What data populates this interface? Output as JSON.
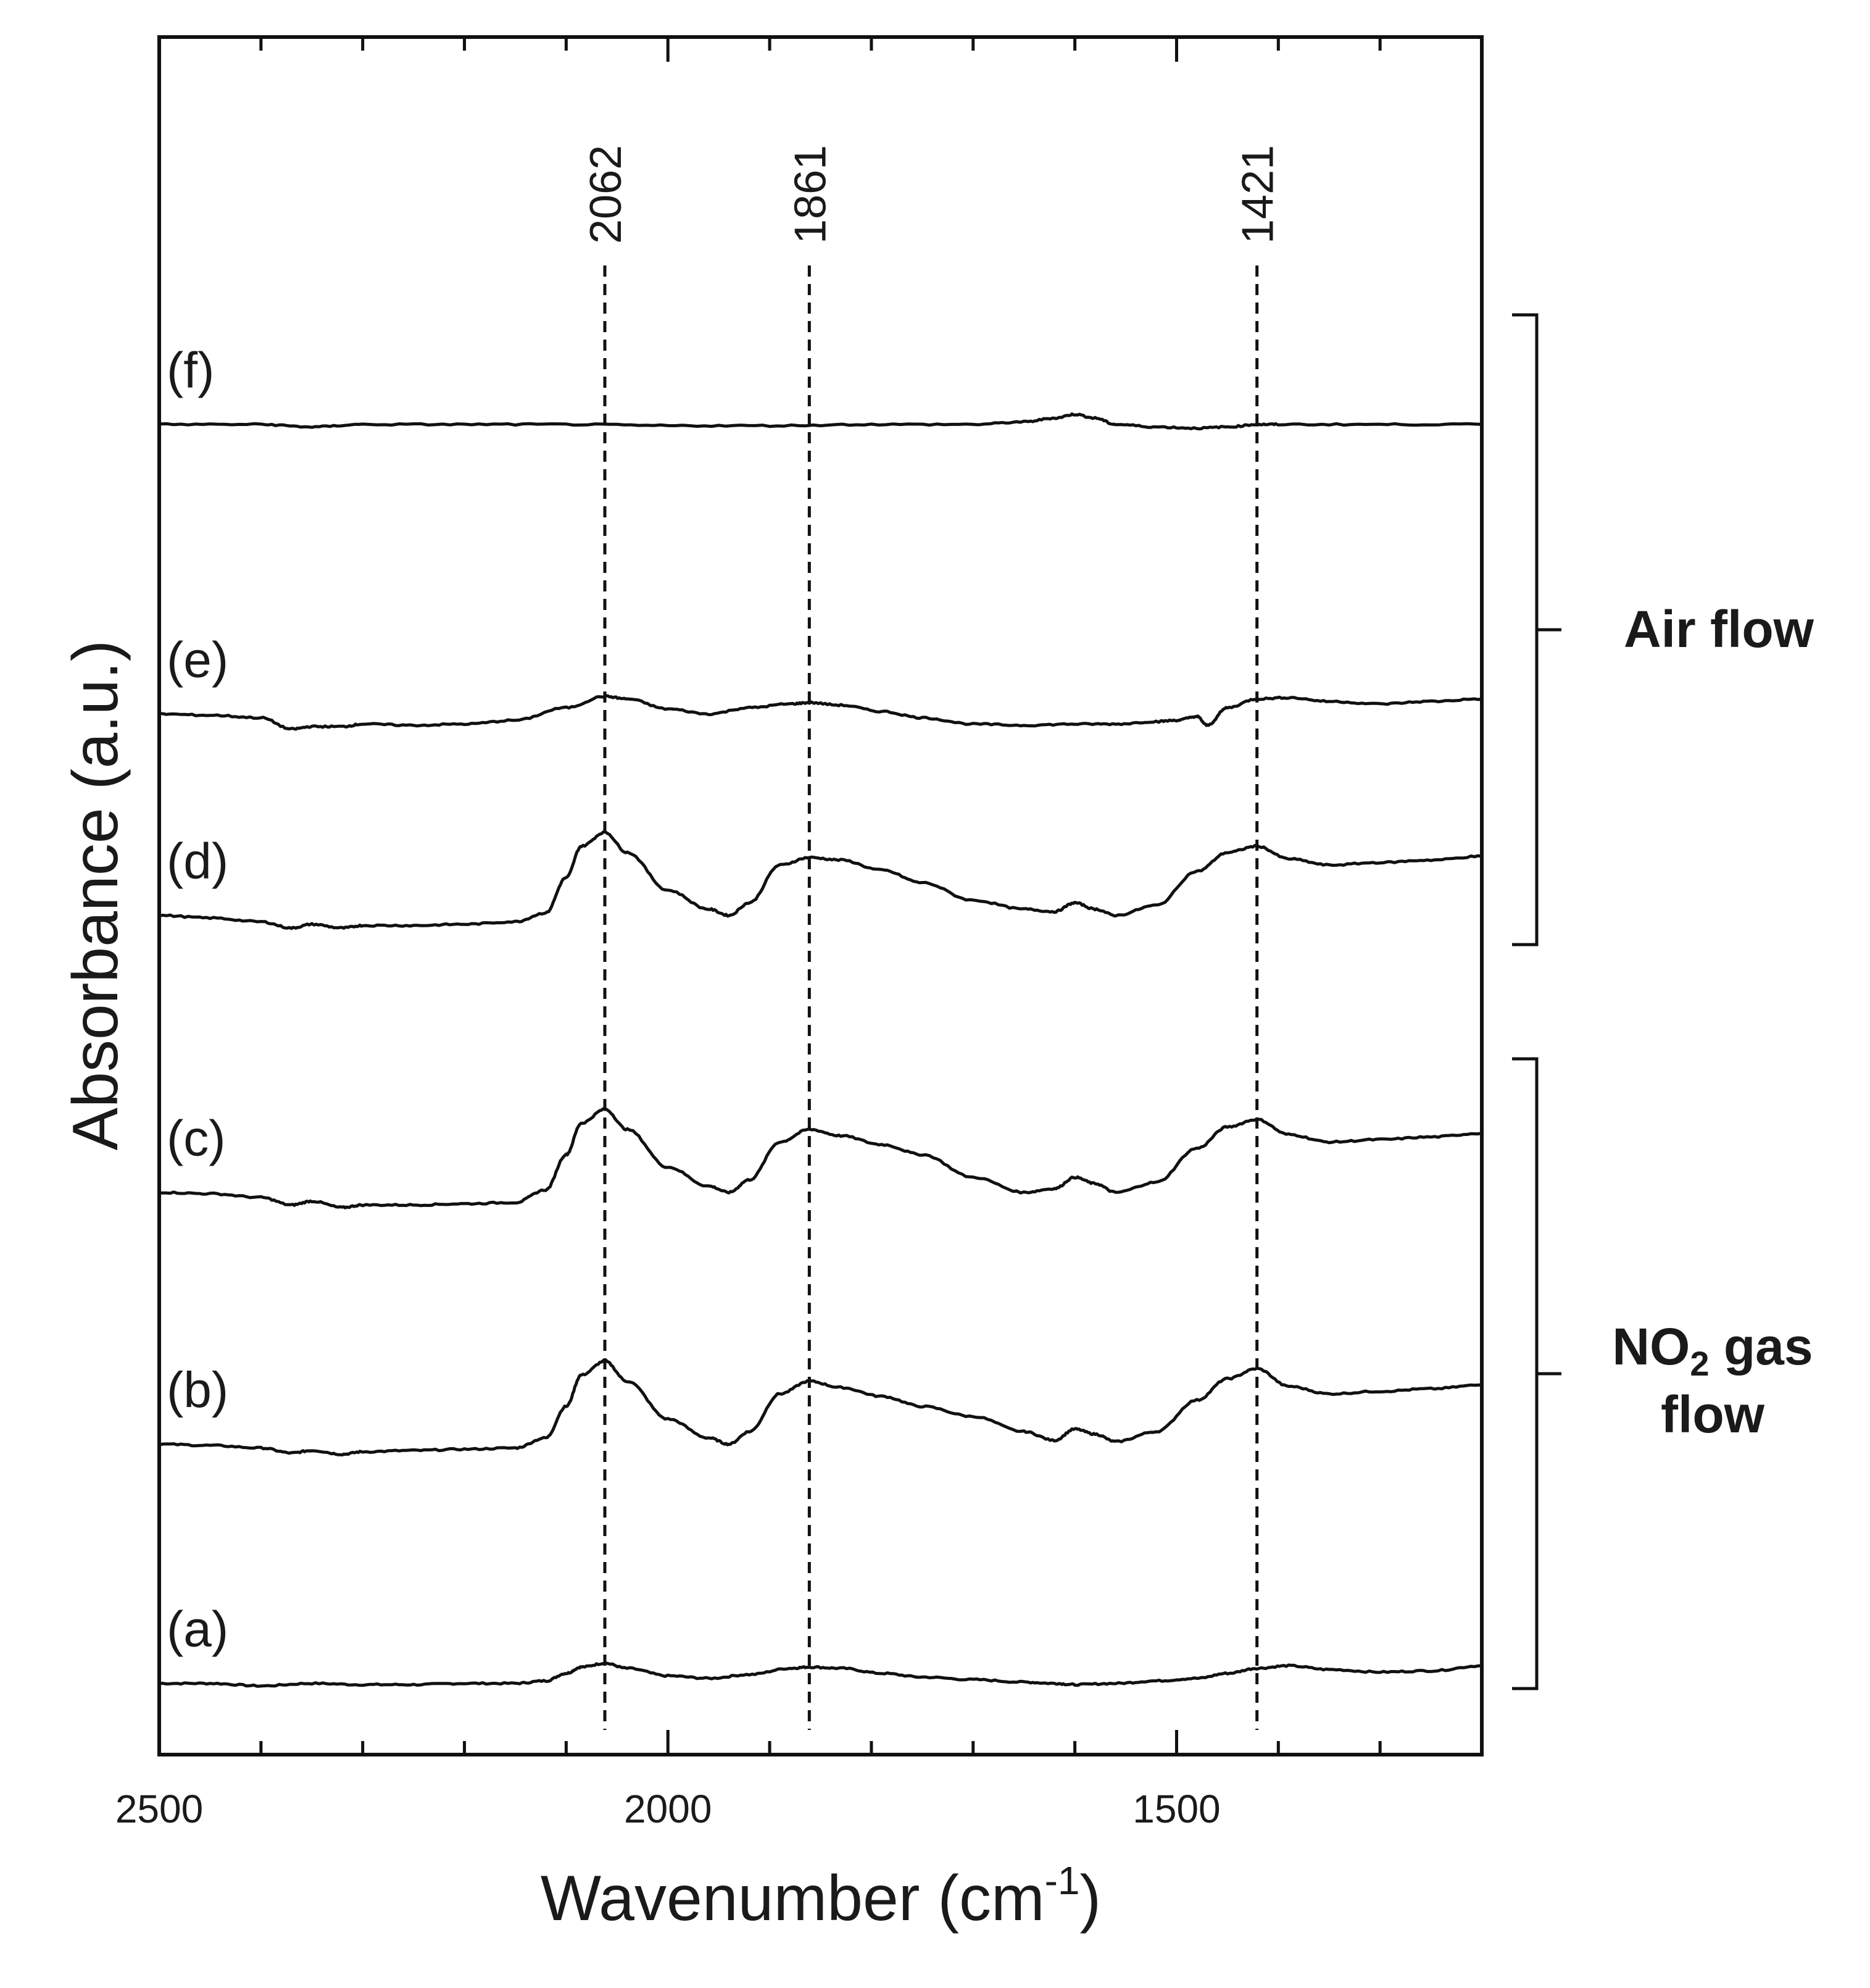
{
  "chart_data": {
    "type": "line",
    "title": "",
    "xlabel": "Wavenumber (cm",
    "xlabel_sup": "-1",
    "xlabel_end": ")",
    "ylabel": "Absorbance (a.u.)",
    "xlim": [
      2500,
      1200
    ],
    "x_reversed": true,
    "ylim": [
      0,
      12
    ],
    "grid": false,
    "x_ticks": [
      {
        "value": 2500,
        "label": "2500"
      },
      {
        "value": 2000,
        "label": "2000"
      },
      {
        "value": 1500,
        "label": "1500"
      }
    ],
    "peaks": [
      {
        "value": 2062,
        "label": "2062"
      },
      {
        "value": 1861,
        "label": "1861"
      },
      {
        "value": 1421,
        "label": "1421"
      }
    ],
    "series": [
      {
        "name": "(a)",
        "baseline": 0.1,
        "x": [
          2500,
          2450,
          2400,
          2350,
          2300,
          2250,
          2200,
          2150,
          2120,
          2100,
          2085,
          2062,
          2040,
          2000,
          1960,
          1920,
          1880,
          1861,
          1830,
          1790,
          1750,
          1700,
          1650,
          1620,
          1600,
          1560,
          1520,
          1480,
          1450,
          1421,
          1390,
          1350,
          1300,
          1250,
          1200
        ],
        "y": [
          0.0,
          0.0,
          -0.02,
          0.0,
          -0.01,
          -0.01,
          0.0,
          0.0,
          0.02,
          0.08,
          0.13,
          0.16,
          0.12,
          0.06,
          0.04,
          0.07,
          0.12,
          0.13,
          0.12,
          0.08,
          0.05,
          0.03,
          0.01,
          0.0,
          -0.01,
          0.0,
          0.02,
          0.04,
          0.08,
          0.12,
          0.14,
          0.11,
          0.09,
          0.1,
          0.14
        ]
      },
      {
        "name": "(b)",
        "baseline": 2.0,
        "x": [
          2500,
          2450,
          2400,
          2370,
          2350,
          2320,
          2300,
          2250,
          2200,
          2150,
          2120,
          2100,
          2085,
          2062,
          2040,
          2000,
          1960,
          1940,
          1920,
          1890,
          1861,
          1830,
          1790,
          1750,
          1700,
          1650,
          1620,
          1600,
          1580,
          1560,
          1520,
          1480,
          1450,
          1421,
          1390,
          1350,
          1300,
          1250,
          1200
        ],
        "y": [
          0.0,
          -0.01,
          -0.03,
          -0.07,
          -0.05,
          -0.08,
          -0.06,
          -0.05,
          -0.04,
          -0.03,
          0.05,
          0.3,
          0.55,
          0.66,
          0.5,
          0.2,
          0.05,
          0.0,
          0.1,
          0.4,
          0.5,
          0.45,
          0.38,
          0.3,
          0.22,
          0.1,
          0.03,
          0.12,
          0.08,
          0.02,
          0.1,
          0.35,
          0.52,
          0.6,
          0.46,
          0.4,
          0.42,
          0.44,
          0.47
        ]
      },
      {
        "name": "(c)",
        "baseline": 4.0,
        "x": [
          2500,
          2450,
          2400,
          2370,
          2350,
          2320,
          2300,
          2250,
          2200,
          2150,
          2120,
          2100,
          2085,
          2062,
          2040,
          2000,
          1960,
          1940,
          1920,
          1890,
          1861,
          1830,
          1790,
          1750,
          1700,
          1650,
          1620,
          1600,
          1580,
          1560,
          1520,
          1480,
          1450,
          1421,
          1390,
          1350,
          1300,
          1250,
          1200
        ],
        "y": [
          0.0,
          -0.01,
          -0.04,
          -0.1,
          -0.07,
          -0.12,
          -0.1,
          -0.1,
          -0.09,
          -0.08,
          0.02,
          0.3,
          0.55,
          0.66,
          0.5,
          0.2,
          0.05,
          0.0,
          0.1,
          0.4,
          0.5,
          0.45,
          0.38,
          0.3,
          0.12,
          0.0,
          0.03,
          0.12,
          0.07,
          0.0,
          0.08,
          0.35,
          0.52,
          0.58,
          0.46,
          0.4,
          0.42,
          0.44,
          0.47
        ]
      },
      {
        "name": "(d)",
        "baseline": 6.2,
        "x": [
          2500,
          2450,
          2400,
          2370,
          2350,
          2320,
          2300,
          2250,
          2200,
          2150,
          2120,
          2100,
          2085,
          2062,
          2040,
          2000,
          1960,
          1940,
          1920,
          1890,
          1861,
          1830,
          1790,
          1750,
          1700,
          1650,
          1620,
          1600,
          1580,
          1560,
          1520,
          1480,
          1450,
          1421,
          1390,
          1350,
          1300,
          1250,
          1200
        ],
        "y": [
          0.0,
          -0.02,
          -0.05,
          -0.1,
          -0.07,
          -0.1,
          -0.08,
          -0.08,
          -0.07,
          -0.05,
          0.02,
          0.3,
          0.55,
          0.66,
          0.5,
          0.2,
          0.05,
          0.0,
          0.1,
          0.4,
          0.46,
          0.44,
          0.36,
          0.26,
          0.12,
          0.05,
          0.03,
          0.1,
          0.05,
          0.0,
          0.08,
          0.35,
          0.5,
          0.55,
          0.45,
          0.4,
          0.42,
          0.44,
          0.47
        ]
      },
      {
        "name": "(e)",
        "baseline": 7.8,
        "x": [
          2500,
          2450,
          2400,
          2370,
          2350,
          2320,
          2300,
          2250,
          2200,
          2150,
          2100,
          2062,
          2040,
          2000,
          1960,
          1920,
          1880,
          1861,
          1830,
          1790,
          1750,
          1700,
          1650,
          1600,
          1560,
          1520,
          1500,
          1480,
          1470,
          1450,
          1421,
          1390,
          1350,
          1300,
          1250,
          1200
        ],
        "y": [
          0.0,
          -0.01,
          -0.03,
          -0.12,
          -0.1,
          -0.1,
          -0.08,
          -0.09,
          -0.08,
          -0.05,
          0.05,
          0.14,
          0.12,
          0.04,
          0.0,
          0.05,
          0.08,
          0.09,
          0.07,
          0.02,
          -0.03,
          -0.08,
          -0.09,
          -0.08,
          -0.08,
          -0.06,
          -0.05,
          -0.02,
          -0.09,
          0.05,
          0.12,
          0.13,
          0.1,
          0.08,
          0.1,
          0.12
        ]
      },
      {
        "name": "(f)",
        "baseline": 10.1,
        "x": [
          2500,
          2400,
          2350,
          2300,
          2200,
          2100,
          2000,
          1900,
          1800,
          1700,
          1650,
          1620,
          1600,
          1580,
          1560,
          1520,
          1480,
          1450,
          1420,
          1400,
          1300,
          1200
        ],
        "y": [
          0.0,
          0.0,
          -0.02,
          0.0,
          0.0,
          0.0,
          -0.01,
          -0.01,
          0.0,
          0.0,
          0.02,
          0.05,
          0.08,
          0.05,
          0.0,
          -0.02,
          -0.03,
          -0.02,
          0.0,
          0.0,
          0.0,
          0.0
        ]
      }
    ],
    "groups": [
      {
        "name": "Air flow",
        "from": "(d)",
        "to": "(f)"
      },
      {
        "name": "NO2 gas flow",
        "from": "(a)",
        "to": "(c)"
      }
    ],
    "group_label_air": "Air flow",
    "group_label_no2_prefix": "NO",
    "group_label_no2_sub": "2",
    "group_label_no2_suffix": " gas",
    "group_label_no2_line2": "flow"
  }
}
